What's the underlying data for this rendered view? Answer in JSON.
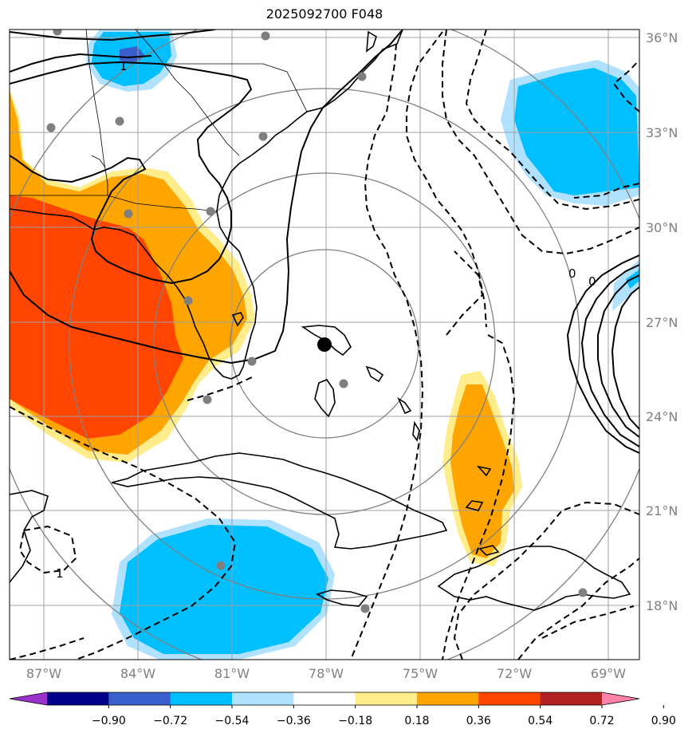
{
  "title": "2025092700 F048",
  "map": {
    "lat_labels": [
      "36°N",
      "33°N",
      "30°N",
      "27°N",
      "24°N",
      "21°N",
      "18°N"
    ],
    "lon_labels": [
      "87°W",
      "84°W",
      "81°W",
      "78°W",
      "75°W",
      "72°W",
      "69°W"
    ],
    "contour_labels": [
      "1",
      "0",
      "0",
      "1"
    ],
    "center_marker": "black-dot"
  },
  "colorbar": {
    "ticks": [
      "−0.90",
      "−0.72",
      "−0.54",
      "−0.36",
      "−0.18",
      "0.18",
      "0.36",
      "0.54",
      "0.72",
      "0.90"
    ],
    "colors": [
      "#9932cc",
      "#00008b",
      "#3a5fcd",
      "#00bfff",
      "#b0e2ff",
      "#ffffff",
      "#ffec8b",
      "#ffa500",
      "#ff4500",
      "#b22222",
      "#ff82ab"
    ]
  }
}
